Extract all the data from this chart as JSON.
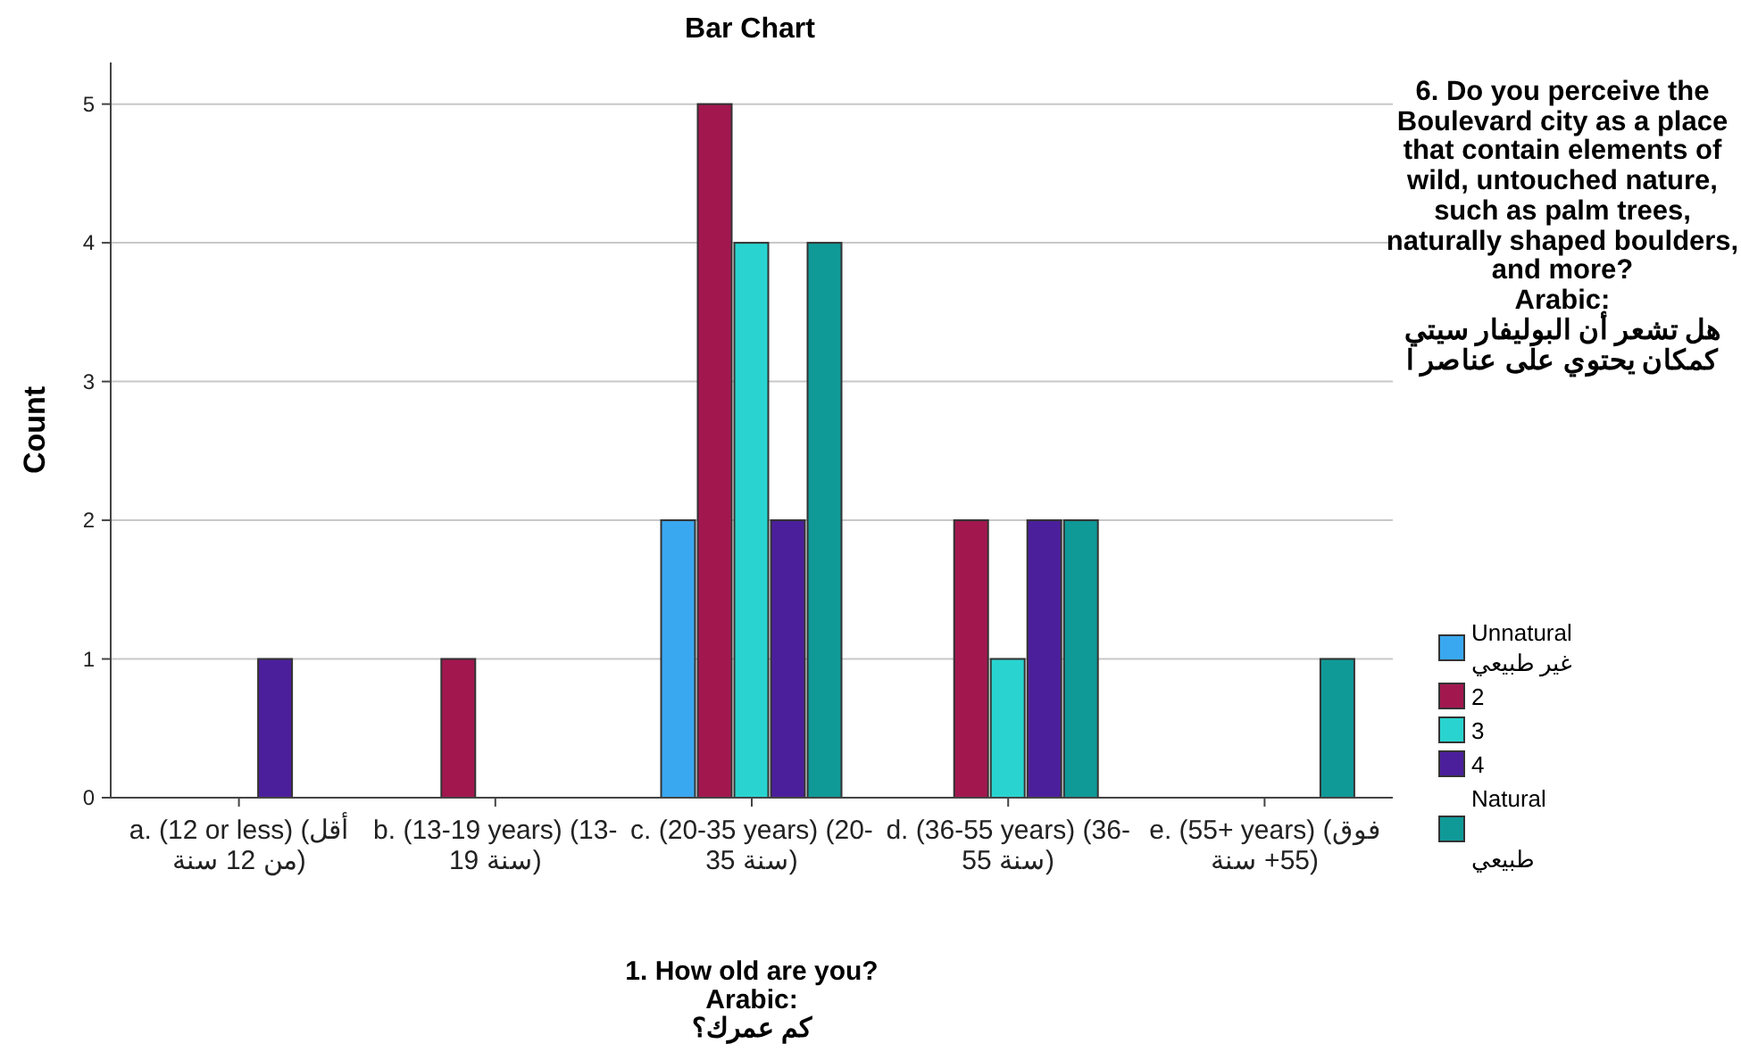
{
  "chart_data": {
    "type": "bar",
    "title": "Bar Chart",
    "xlabel": "1. How old are you?\nArabic:\nكم عمرك؟",
    "ylabel": "Count",
    "legend_title": "6. Do you perceive the Boulevard city as a place that contain elements of wild, untouched nature, such as palm trees, naturally shaped boulders, and more?\nArabic:\nهل تشعر أن البوليفار سيتي كمكان يحتوي على عناصر ا",
    "categories": [
      "a. (12 or less) (أقل من 12 سنة)",
      "b. (13-19 years) (13-19 سنة)",
      "c. (20-35 years) (20-35 سنة)",
      "d. (36-55 years) (36-55 سنة)",
      "e. (55+ years) (فوق 55+ سنة)"
    ],
    "series": [
      {
        "name": "Unnatural\nغير طبيعي",
        "color": "#3aa8f0",
        "values": [
          null,
          null,
          2,
          null,
          null
        ]
      },
      {
        "name": "2",
        "color": "#a3174f",
        "values": [
          null,
          1,
          5,
          2,
          null
        ]
      },
      {
        "name": "3",
        "color": "#29d4d0",
        "values": [
          null,
          null,
          4,
          1,
          null
        ]
      },
      {
        "name": "4",
        "color": "#4b1f9c",
        "values": [
          1,
          null,
          2,
          2,
          null
        ]
      },
      {
        "name": "Natural\n\nطبيعي",
        "color": "#0f9a98",
        "values": [
          null,
          null,
          4,
          2,
          1
        ]
      }
    ],
    "ylim": [
      0,
      5.3
    ],
    "yticks": [
      0,
      1,
      2,
      3,
      4,
      5
    ],
    "grid": "y",
    "legend": "right"
  }
}
